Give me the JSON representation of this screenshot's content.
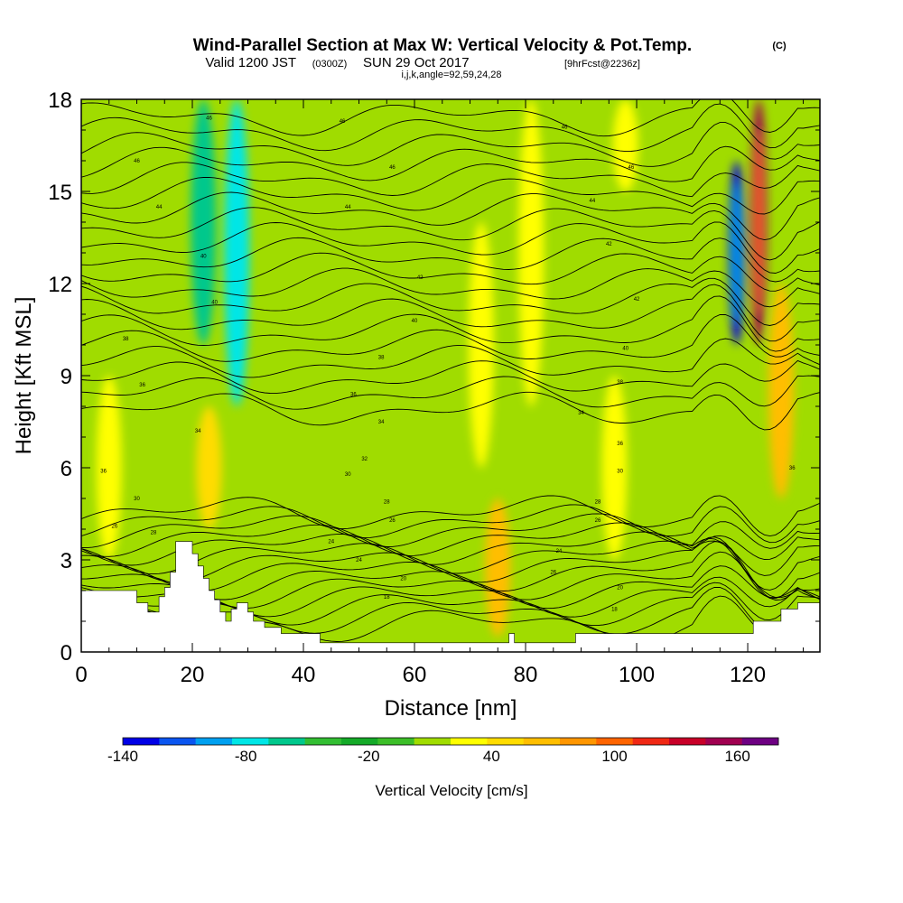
{
  "header": {
    "title": "Wind-Parallel Section at Max W: Vertical Velocity & Pot.Temp.",
    "copyright": "(C)",
    "valid_prefix": "Valid 1200 JST",
    "valid_utc": "(0300Z)",
    "valid_date": "SUN 29 Oct 2017",
    "forecast": "[9hrFcst@2236z]",
    "indices": "i,j,k,angle=92,59,24,28"
  },
  "chart_data": {
    "type": "heatmap",
    "xlabel": "Distance [nm]",
    "ylabel": "Height [Kft MSL]",
    "xlim": [
      0,
      133
    ],
    "ylim": [
      0,
      18
    ],
    "xticks": [
      0,
      20,
      40,
      60,
      80,
      100,
      120
    ],
    "yticks": [
      0,
      3,
      6,
      9,
      12,
      15,
      18
    ],
    "colorbar": {
      "label": "Vertical Velocity [cm/s]",
      "min": -140,
      "max": 180,
      "step": 20,
      "tick_labels": [
        -140,
        -80,
        -20,
        40,
        100,
        160
      ],
      "colors": [
        "#0000e6",
        "#0a55f0",
        "#00a0f0",
        "#00e6e6",
        "#00c88c",
        "#32be32",
        "#14aa28",
        "#3cbe28",
        "#a0dc00",
        "#ffff00",
        "#ffdc00",
        "#ffbe00",
        "#ff9600",
        "#ff6400",
        "#f02814",
        "#c80028",
        "#a00050",
        "#6e0082"
      ]
    },
    "vertical_velocity_features": [
      {
        "x": 5,
        "y_range": [
          3,
          9
        ],
        "w": 40
      },
      {
        "x": 23,
        "y_range": [
          4,
          8
        ],
        "w": 60
      },
      {
        "x": 22,
        "y_range": [
          10,
          18
        ],
        "w": -60
      },
      {
        "x": 28,
        "y_range": [
          8,
          18
        ],
        "w": -80
      },
      {
        "x": 72,
        "y_range": [
          6,
          14
        ],
        "w": 40
      },
      {
        "x": 75,
        "y_range": [
          0.5,
          5
        ],
        "w": 80
      },
      {
        "x": 81,
        "y_range": [
          8,
          18
        ],
        "w": 40
      },
      {
        "x": 96,
        "y_range": [
          3,
          9
        ],
        "w": 40
      },
      {
        "x": 98,
        "y_range": [
          15,
          18
        ],
        "w": 40
      },
      {
        "x": 118,
        "y_range": [
          10,
          16
        ],
        "w": -140
      },
      {
        "x": 122,
        "y_range": [
          10,
          18
        ],
        "w": 180
      },
      {
        "x": 126,
        "y_range": [
          5,
          12
        ],
        "w": 80
      }
    ],
    "potential_temperature_labels": [
      {
        "x": 10,
        "y": 16.0,
        "text": "46"
      },
      {
        "x": 23,
        "y": 17.4,
        "text": "46"
      },
      {
        "x": 47,
        "y": 17.3,
        "text": "46"
      },
      {
        "x": 87,
        "y": 17.1,
        "text": "46"
      },
      {
        "x": 14,
        "y": 14.5,
        "text": "44"
      },
      {
        "x": 56,
        "y": 15.8,
        "text": "46"
      },
      {
        "x": 48,
        "y": 14.5,
        "text": "44"
      },
      {
        "x": 99,
        "y": 15.8,
        "text": "46"
      },
      {
        "x": 92,
        "y": 14.7,
        "text": "44"
      },
      {
        "x": 22,
        "y": 12.9,
        "text": "40"
      },
      {
        "x": 24,
        "y": 11.4,
        "text": "40"
      },
      {
        "x": 61,
        "y": 12.2,
        "text": "42"
      },
      {
        "x": 95,
        "y": 13.3,
        "text": "42"
      },
      {
        "x": 60,
        "y": 10.8,
        "text": "40"
      },
      {
        "x": 100,
        "y": 11.5,
        "text": "42"
      },
      {
        "x": 8,
        "y": 10.2,
        "text": "38"
      },
      {
        "x": 54,
        "y": 9.6,
        "text": "38"
      },
      {
        "x": 98,
        "y": 9.9,
        "text": "40"
      },
      {
        "x": 11,
        "y": 8.7,
        "text": "36"
      },
      {
        "x": 49,
        "y": 8.4,
        "text": "36"
      },
      {
        "x": 97,
        "y": 8.8,
        "text": "38"
      },
      {
        "x": 21,
        "y": 7.2,
        "text": "34"
      },
      {
        "x": 54,
        "y": 7.5,
        "text": "34"
      },
      {
        "x": 90,
        "y": 7.8,
        "text": "34"
      },
      {
        "x": 51,
        "y": 6.3,
        "text": "32"
      },
      {
        "x": 97,
        "y": 6.8,
        "text": "36"
      },
      {
        "x": 4,
        "y": 5.9,
        "text": "36"
      },
      {
        "x": 48,
        "y": 5.8,
        "text": "30"
      },
      {
        "x": 97,
        "y": 5.9,
        "text": "30"
      },
      {
        "x": 10,
        "y": 5.0,
        "text": "30"
      },
      {
        "x": 55,
        "y": 4.9,
        "text": "28"
      },
      {
        "x": 93,
        "y": 4.9,
        "text": "28"
      },
      {
        "x": 6,
        "y": 4.1,
        "text": "26"
      },
      {
        "x": 56,
        "y": 4.3,
        "text": "26"
      },
      {
        "x": 93,
        "y": 4.3,
        "text": "26"
      },
      {
        "x": 13,
        "y": 3.9,
        "text": "28"
      },
      {
        "x": 45,
        "y": 3.6,
        "text": "24"
      },
      {
        "x": 86,
        "y": 3.3,
        "text": "24"
      },
      {
        "x": 50,
        "y": 3.0,
        "text": "24"
      },
      {
        "x": 85,
        "y": 2.6,
        "text": "26"
      },
      {
        "x": 58,
        "y": 2.4,
        "text": "20"
      },
      {
        "x": 97,
        "y": 2.1,
        "text": "20"
      },
      {
        "x": 55,
        "y": 1.8,
        "text": "18"
      },
      {
        "x": 96,
        "y": 1.4,
        "text": "18"
      },
      {
        "x": 128,
        "y": 6.0,
        "text": "36"
      }
    ],
    "terrain_kft": [
      [
        0,
        2.0
      ],
      [
        5,
        2.0
      ],
      [
        8,
        2.0
      ],
      [
        10,
        1.6
      ],
      [
        12,
        1.3
      ],
      [
        14,
        1.8
      ],
      [
        15,
        2.1
      ],
      [
        16,
        2.6
      ],
      [
        17,
        3.6
      ],
      [
        19,
        3.6
      ],
      [
        20,
        3.2
      ],
      [
        21,
        2.8
      ],
      [
        22,
        2.4
      ],
      [
        23,
        2.0
      ],
      [
        24,
        1.7
      ],
      [
        25,
        1.3
      ],
      [
        26,
        1.0
      ],
      [
        27,
        1.4
      ],
      [
        28,
        1.6
      ],
      [
        30,
        1.3
      ],
      [
        31,
        1.0
      ],
      [
        33,
        0.8
      ],
      [
        36,
        0.6
      ],
      [
        40,
        0.6
      ],
      [
        43,
        0.3
      ],
      [
        50,
        0.3
      ],
      [
        60,
        0.3
      ],
      [
        70,
        0.3
      ],
      [
        76,
        0.3
      ],
      [
        77,
        0.6
      ],
      [
        78,
        0.3
      ],
      [
        88,
        0.3
      ],
      [
        89,
        0.6
      ],
      [
        100,
        0.6
      ],
      [
        110,
        0.6
      ],
      [
        117,
        0.6
      ],
      [
        120,
        0.6
      ],
      [
        121,
        1.0
      ],
      [
        125,
        1.0
      ],
      [
        126,
        1.4
      ],
      [
        129,
        1.6
      ],
      [
        133,
        1.6
      ]
    ]
  }
}
